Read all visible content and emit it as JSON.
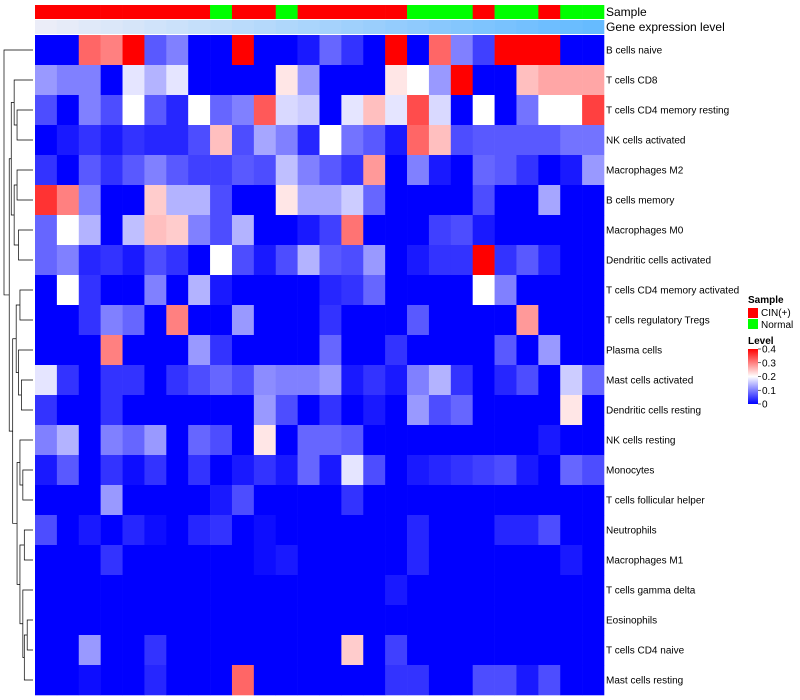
{
  "chart_data": {
    "type": "heatmap",
    "track_labels": {
      "sample": "Sample",
      "expression": "Gene expression level"
    },
    "sample_track": [
      "CIN(+)",
      "CIN(+)",
      "CIN(+)",
      "CIN(+)",
      "CIN(+)",
      "CIN(+)",
      "CIN(+)",
      "CIN(+)",
      "Normal",
      "CIN(+)",
      "CIN(+)",
      "Normal",
      "CIN(+)",
      "CIN(+)",
      "CIN(+)",
      "CIN(+)",
      "CIN(+)",
      "Normal",
      "Normal",
      "Normal",
      "CIN(+)",
      "Normal",
      "Normal",
      "CIN(+)",
      "Normal",
      "Normal"
    ],
    "expression_track": [
      0.02,
      0.06,
      0.1,
      0.14,
      0.18,
      0.22,
      0.26,
      0.3,
      0.34,
      0.38,
      0.42,
      0.46,
      0.5,
      0.54,
      0.58,
      0.62,
      0.66,
      0.7,
      0.74,
      0.78,
      0.82,
      0.86,
      0.9,
      0.94,
      0.97,
      1.0
    ],
    "rows": [
      "B cells naive",
      "T cells CD8",
      "T cells CD4 memory resting",
      "NK cells activated",
      "Macrophages M2",
      "B cells memory",
      "Macrophages M0",
      "Dendritic cells activated",
      "T cells CD4 memory activated",
      "T cells regulatory  Tregs",
      "Plasma cells",
      "Mast cells activated",
      "Dendritic cells resting",
      "NK cells resting",
      "Monocytes",
      "T cells follicular helper",
      "Neutrophils",
      "Macrophages M1",
      "T cells gamma delta",
      "Eosinophils",
      "T cells CD4 naive",
      "Mast cells resting"
    ],
    "values": [
      [
        0,
        0,
        0.32,
        0.3,
        0.4,
        0.07,
        0.1,
        0,
        0,
        0.4,
        0,
        0,
        0.02,
        0.08,
        0.04,
        0,
        0.4,
        0,
        0.32,
        0.1,
        0.05,
        0.4,
        0.4,
        0.4,
        0,
        0
      ],
      [
        0.12,
        0.1,
        0.1,
        0,
        0.18,
        0.14,
        0.18,
        0,
        0,
        0,
        0,
        0.22,
        0.12,
        0,
        0,
        0,
        0.22,
        0.2,
        0.12,
        0.4,
        0,
        0,
        0.25,
        0.27,
        0.27,
        0.27
      ],
      [
        0.06,
        0,
        0.1,
        0.06,
        0.2,
        0.07,
        0.03,
        0.2,
        0.08,
        0.1,
        0.33,
        0.17,
        0.16,
        0,
        0.18,
        0.25,
        0.18,
        0.34,
        0.17,
        0,
        0.2,
        0,
        0.09,
        0.2,
        0.2,
        0.35
      ],
      [
        0,
        0.02,
        0.04,
        0.02,
        0.04,
        0.03,
        0.03,
        0.06,
        0.25,
        0.06,
        0.13,
        0.1,
        0.03,
        0.2,
        0.09,
        0.07,
        0.02,
        0.32,
        0.25,
        0.06,
        0.07,
        0.07,
        0.07,
        0.07,
        0.09,
        0.09
      ],
      [
        0.04,
        0,
        0.07,
        0.04,
        0.07,
        0.1,
        0.07,
        0.05,
        0.05,
        0.07,
        0.06,
        0.15,
        0.1,
        0.07,
        0.04,
        0.28,
        0,
        0.1,
        0.02,
        0,
        0.08,
        0.07,
        0.04,
        0,
        0.02,
        0.12
      ],
      [
        0.36,
        0.3,
        0.1,
        0,
        0,
        0.24,
        0.14,
        0.14,
        0.06,
        0,
        0,
        0.22,
        0.13,
        0.13,
        0.16,
        0.08,
        0,
        0,
        0,
        0,
        0.06,
        0,
        0,
        0.13,
        0,
        0
      ],
      [
        0.08,
        0.2,
        0.14,
        0,
        0.15,
        0.25,
        0.24,
        0.1,
        0.06,
        0.14,
        0,
        0,
        0.02,
        0.05,
        0.31,
        0,
        0,
        0,
        0.05,
        0.06,
        0.02,
        0,
        0,
        0,
        0,
        0
      ],
      [
        0.08,
        0.1,
        0.03,
        0.04,
        0.02,
        0.06,
        0.04,
        0,
        0.2,
        0.06,
        0.02,
        0.06,
        0.14,
        0.07,
        0.06,
        0.12,
        0,
        0.02,
        0.04,
        0.04,
        0.4,
        0.04,
        0.07,
        0.03,
        0,
        0
      ],
      [
        0,
        0.2,
        0.04,
        0,
        0,
        0.1,
        0,
        0.14,
        0.02,
        0,
        0,
        0,
        0,
        0.03,
        0.04,
        0.08,
        0,
        0,
        0,
        0,
        0.2,
        0.1,
        0,
        0,
        0,
        0
      ],
      [
        0,
        0,
        0.04,
        0.1,
        0.08,
        0,
        0.3,
        0,
        0,
        0.12,
        0,
        0,
        0,
        0.04,
        0,
        0,
        0,
        0.07,
        0,
        0,
        0,
        0,
        0.28,
        0,
        0,
        0
      ],
      [
        0,
        0,
        0,
        0.3,
        0,
        0,
        0,
        0.12,
        0.04,
        0,
        0,
        0,
        0,
        0.08,
        0,
        0,
        0.04,
        0,
        0,
        0,
        0,
        0.07,
        0,
        0.12,
        0,
        0
      ],
      [
        0.18,
        0.04,
        0,
        0.04,
        0.04,
        0,
        0.04,
        0.06,
        0.08,
        0.06,
        0.11,
        0.1,
        0.1,
        0.12,
        0.02,
        0.04,
        0.02,
        0.1,
        0.14,
        0.04,
        0,
        0.03,
        0.06,
        0,
        0.16,
        0.08
      ],
      [
        0.04,
        0,
        0,
        0.04,
        0,
        0,
        0,
        0,
        0,
        0,
        0.12,
        0.06,
        0,
        0.04,
        0,
        0.02,
        0,
        0.12,
        0.06,
        0.08,
        0,
        0,
        0,
        0,
        0.22,
        0
      ],
      [
        0.1,
        0.14,
        0,
        0.1,
        0.08,
        0.12,
        0,
        0.08,
        0.06,
        0,
        0.22,
        0,
        0.08,
        0.08,
        0.07,
        0,
        0,
        0,
        0,
        0,
        0,
        0,
        0,
        0.02,
        0,
        0
      ],
      [
        0.02,
        0.07,
        0,
        0.04,
        0.01,
        0.04,
        0,
        0.04,
        0,
        0.02,
        0.04,
        0.02,
        0.08,
        0.02,
        0.18,
        0.06,
        0,
        0.02,
        0.03,
        0.04,
        0.05,
        0.06,
        0.02,
        0,
        0.08,
        0.06
      ],
      [
        0,
        0,
        0,
        0.12,
        0,
        0,
        0,
        0,
        0.02,
        0.06,
        0,
        0,
        0,
        0,
        0.04,
        0,
        0,
        0,
        0,
        0,
        0,
        0,
        0,
        0,
        0,
        0
      ],
      [
        0.06,
        0,
        0.02,
        0,
        0.03,
        0.01,
        0,
        0.03,
        0.04,
        0,
        0.01,
        0,
        0,
        0,
        0,
        0,
        0,
        0.03,
        0,
        0,
        0,
        0.03,
        0.03,
        0.06,
        0,
        0
      ],
      [
        0,
        0,
        0,
        0.04,
        0,
        0,
        0,
        0,
        0,
        0,
        0.01,
        0.02,
        0,
        0,
        0,
        0,
        0,
        0.03,
        0,
        0,
        0,
        0,
        0,
        0,
        0.02,
        0
      ],
      [
        0,
        0,
        0,
        0,
        0,
        0,
        0,
        0,
        0,
        0,
        0,
        0,
        0,
        0,
        0,
        0,
        0.02,
        0,
        0,
        0,
        0,
        0,
        0,
        0,
        0,
        0
      ],
      [
        0,
        0,
        0,
        0,
        0,
        0,
        0,
        0,
        0,
        0,
        0,
        0,
        0,
        0,
        0,
        0,
        0,
        0,
        0,
        0,
        0,
        0,
        0,
        0,
        0,
        0
      ],
      [
        0,
        0,
        0.12,
        0,
        0,
        0.04,
        0,
        0,
        0,
        0,
        0,
        0,
        0,
        0,
        0.24,
        0,
        0.05,
        0,
        0,
        0,
        0,
        0,
        0,
        0,
        0,
        0
      ],
      [
        0,
        0,
        0.01,
        0,
        0,
        0.03,
        0,
        0,
        0,
        0.32,
        0,
        0,
        0,
        0,
        0,
        0,
        0.04,
        0.04,
        0,
        0,
        0.06,
        0.06,
        0.02,
        0.06,
        0,
        0
      ]
    ],
    "color_scale": {
      "min": 0,
      "mid": 0.2,
      "max": 0.4,
      "low": "#0000ff",
      "midColor": "#ffffff",
      "high": "#ff0000"
    },
    "colors": {
      "CIN(+)": "#ff0000",
      "Normal": "#00ff00"
    },
    "legend": {
      "sample_title": "Sample",
      "sample_entries": [
        "CIN(+)",
        "Normal"
      ],
      "level_title": "Level",
      "level_ticks": [
        "0.4",
        "0.3",
        "0.2",
        "0.1",
        "0"
      ],
      "placement": "right"
    }
  }
}
